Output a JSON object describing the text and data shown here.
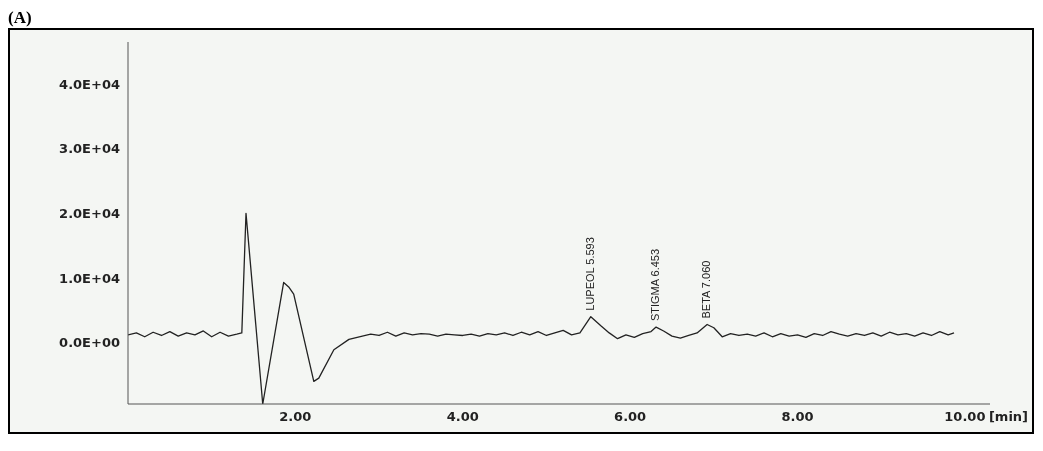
{
  "chart_data": {
    "type": "line",
    "title": "(A)",
    "xlabel": "[min]",
    "xlim": [
      0,
      10.3
    ],
    "xticks": [
      {
        "value": 2,
        "label": "2.00"
      },
      {
        "value": 4,
        "label": "4.00"
      },
      {
        "value": 6,
        "label": "6.00"
      },
      {
        "value": 8,
        "label": "8.00"
      },
      {
        "value": 10,
        "label": "10.00"
      }
    ],
    "ylim": [
      -9500,
      46500
    ],
    "yticks": [
      {
        "value": 0,
        "label": "0.0E+00"
      },
      {
        "value": 10000,
        "label": "1.0E+04"
      },
      {
        "value": 20000,
        "label": "2.0E+04"
      },
      {
        "value": 30000,
        "label": "3.0E+04"
      },
      {
        "value": 40000,
        "label": "4.0E+04"
      }
    ],
    "grid": false,
    "legend": false,
    "marker": "none",
    "line_style": "solid",
    "annotations": [
      {
        "text": "LUPEOL 5.593",
        "x": 5.53,
        "y": 4000
      },
      {
        "text": "STIGMA 6.453",
        "x": 6.31,
        "y": 2400
      },
      {
        "text": "BETA 7.060",
        "x": 6.92,
        "y": 2800
      }
    ],
    "series": [
      {
        "color": "#222222",
        "x": [
          0.0,
          0.1,
          0.2,
          0.3,
          0.4,
          0.5,
          0.6,
          0.7,
          0.8,
          0.9,
          1.0,
          1.1,
          1.2,
          1.3,
          1.36,
          1.41,
          1.61,
          1.86,
          1.92,
          1.98,
          2.22,
          2.28,
          2.46,
          2.64,
          2.8,
          2.9,
          3.0,
          3.1,
          3.2,
          3.3,
          3.4,
          3.5,
          3.6,
          3.7,
          3.8,
          3.9,
          4.0,
          4.1,
          4.2,
          4.3,
          4.4,
          4.5,
          4.6,
          4.7,
          4.8,
          4.9,
          5.0,
          5.1,
          5.2,
          5.3,
          5.4,
          5.53,
          5.65,
          5.75,
          5.85,
          5.95,
          6.05,
          6.15,
          6.25,
          6.31,
          6.4,
          6.5,
          6.6,
          6.7,
          6.8,
          6.92,
          7.0,
          7.1,
          7.2,
          7.3,
          7.4,
          7.5,
          7.6,
          7.7,
          7.8,
          7.9,
          8.0,
          8.1,
          8.2,
          8.3,
          8.4,
          8.5,
          8.6,
          8.7,
          8.8,
          8.9,
          9.0,
          9.1,
          9.2,
          9.3,
          9.4,
          9.5,
          9.6,
          9.7,
          9.8,
          9.87
        ],
        "values": [
          1200,
          1500,
          900,
          1600,
          1100,
          1700,
          1000,
          1500,
          1200,
          1800,
          900,
          1600,
          1000,
          1300,
          1500,
          20000,
          -9500,
          9300,
          8600,
          7500,
          -6000,
          -5500,
          -1100,
          500,
          1000,
          1300,
          1100,
          1600,
          1000,
          1500,
          1200,
          1400,
          1300,
          1000,
          1300,
          1200,
          1100,
          1300,
          1000,
          1400,
          1200,
          1500,
          1100,
          1600,
          1200,
          1700,
          1100,
          1500,
          1900,
          1200,
          1500,
          4000,
          2600,
          1500,
          600,
          1200,
          800,
          1400,
          1700,
          2400,
          1800,
          1000,
          700,
          1100,
          1500,
          2800,
          2300,
          900,
          1400,
          1100,
          1300,
          1000,
          1500,
          900,
          1400,
          1000,
          1200,
          800,
          1400,
          1100,
          1700,
          1300,
          1000,
          1400,
          1100,
          1500,
          1000,
          1600,
          1200,
          1400,
          1000,
          1500,
          1100,
          1700,
          1200,
          1500
        ]
      }
    ]
  }
}
